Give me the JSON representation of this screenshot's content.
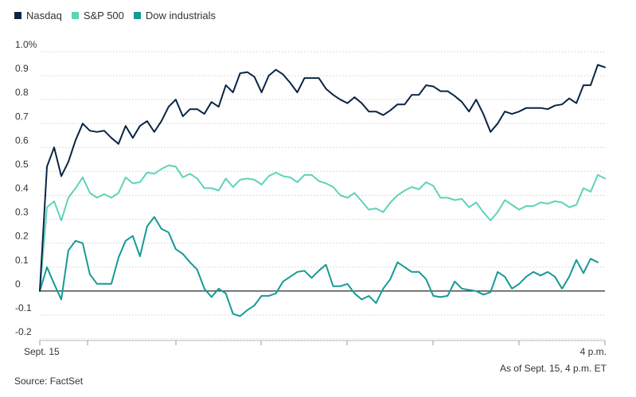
{
  "chart_data": {
    "type": "line",
    "ylim": [
      -0.2,
      1.0
    ],
    "y_ticks": [
      {
        "v": 1.0,
        "label": "1.0%"
      },
      {
        "v": 0.9,
        "label": "0.9"
      },
      {
        "v": 0.8,
        "label": "0.8"
      },
      {
        "v": 0.7,
        "label": "0.7"
      },
      {
        "v": 0.6,
        "label": "0.6"
      },
      {
        "v": 0.5,
        "label": "0.5"
      },
      {
        "v": 0.4,
        "label": "0.4"
      },
      {
        "v": 0.3,
        "label": "0.3"
      },
      {
        "v": 0.2,
        "label": "0.2"
      },
      {
        "v": 0.1,
        "label": "0.1"
      },
      {
        "v": 0.0,
        "label": "0"
      },
      {
        "v": -0.1,
        "label": "-0.1"
      },
      {
        "v": -0.2,
        "label": "-0.2"
      }
    ],
    "x_tick_labels": {
      "start": "Sept. 15",
      "end": "4 p.m."
    },
    "grid": true,
    "legend_position": "top-left",
    "series": [
      {
        "name": "Nasdaq",
        "color": "#0b2545",
        "values": [
          0,
          0.52,
          0.6,
          0.48,
          0.54,
          0.63,
          0.7,
          0.67,
          0.665,
          0.67,
          0.64,
          0.615,
          0.69,
          0.64,
          0.69,
          0.71,
          0.665,
          0.71,
          0.77,
          0.8,
          0.73,
          0.76,
          0.76,
          0.74,
          0.79,
          0.77,
          0.86,
          0.83,
          0.91,
          0.915,
          0.895,
          0.83,
          0.9,
          0.925,
          0.905,
          0.87,
          0.83,
          0.89,
          0.89,
          0.89,
          0.845,
          0.82,
          0.8,
          0.785,
          0.81,
          0.785,
          0.75,
          0.75,
          0.735,
          0.755,
          0.78,
          0.78,
          0.82,
          0.82,
          0.86,
          0.855,
          0.835,
          0.835,
          0.815,
          0.79,
          0.75,
          0.8,
          0.74,
          0.665,
          0.7,
          0.75,
          0.74,
          0.75,
          0.765,
          0.765,
          0.765,
          0.76,
          0.775,
          0.78,
          0.805,
          0.785,
          0.86,
          0.86,
          0.945,
          0.935
        ]
      },
      {
        "name": "S&P 500",
        "color": "#5fd3b8",
        "values": [
          0,
          0.35,
          0.375,
          0.295,
          0.39,
          0.43,
          0.475,
          0.41,
          0.39,
          0.405,
          0.39,
          0.41,
          0.475,
          0.45,
          0.455,
          0.495,
          0.49,
          0.51,
          0.525,
          0.52,
          0.475,
          0.49,
          0.47,
          0.43,
          0.43,
          0.42,
          0.47,
          0.435,
          0.465,
          0.47,
          0.465,
          0.445,
          0.48,
          0.495,
          0.48,
          0.475,
          0.455,
          0.485,
          0.485,
          0.46,
          0.45,
          0.435,
          0.4,
          0.39,
          0.41,
          0.375,
          0.34,
          0.345,
          0.33,
          0.37,
          0.4,
          0.42,
          0.435,
          0.425,
          0.455,
          0.44,
          0.39,
          0.39,
          0.38,
          0.385,
          0.35,
          0.37,
          0.33,
          0.295,
          0.33,
          0.38,
          0.36,
          0.34,
          0.355,
          0.355,
          0.37,
          0.365,
          0.375,
          0.37,
          0.35,
          0.36,
          0.43,
          0.415,
          0.485,
          0.47
        ]
      },
      {
        "name": "Dow industrials",
        "color": "#169a96",
        "values": [
          0,
          0.1,
          0.03,
          -0.035,
          0.17,
          0.21,
          0.2,
          0.07,
          0.03,
          0.03,
          0.03,
          0.14,
          0.21,
          0.23,
          0.145,
          0.27,
          0.31,
          0.26,
          0.245,
          0.175,
          0.155,
          0.12,
          0.09,
          0.01,
          -0.025,
          0.01,
          -0.01,
          -0.095,
          -0.105,
          -0.08,
          -0.06,
          -0.02,
          -0.02,
          -0.01,
          0.04,
          0.06,
          0.08,
          0.085,
          0.055,
          0.085,
          0.11,
          0.02,
          0.02,
          0.03,
          -0.01,
          -0.035,
          -0.02,
          -0.05,
          0.01,
          0.05,
          0.12,
          0.1,
          0.08,
          0.08,
          0.05,
          -0.02,
          -0.025,
          -0.02,
          0.04,
          0.01,
          0.005,
          0.0,
          -0.015,
          -0.005,
          0.08,
          0.06,
          0.01,
          0.03,
          0.06,
          0.08,
          0.065,
          0.08,
          0.06,
          0.01,
          0.06,
          0.13,
          0.075,
          0.135,
          0.12
        ]
      }
    ],
    "annotations": {
      "as_of": "As of Sept. 15, 4 p.m. ET",
      "source": "Source: FactSet"
    }
  }
}
